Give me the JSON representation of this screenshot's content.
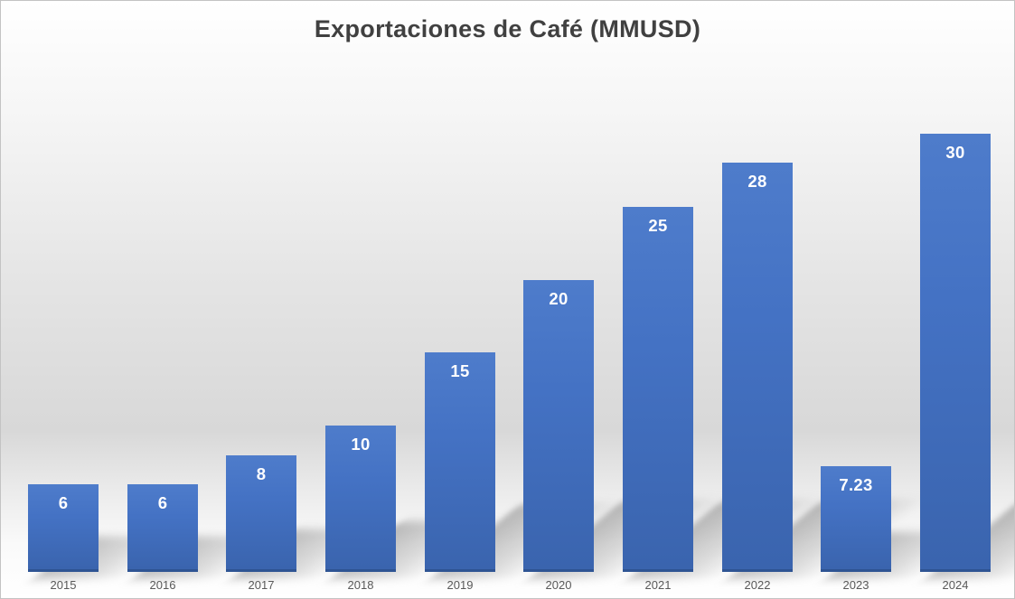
{
  "chart_data": {
    "type": "bar",
    "title": "Exportaciones de Café (MMUSD)",
    "categories": [
      "2015",
      "2016",
      "2017",
      "2018",
      "2019",
      "2020",
      "2021",
      "2022",
      "2023",
      "2024"
    ],
    "values": [
      6,
      6,
      8,
      10,
      15,
      20,
      25,
      28,
      7.23,
      30
    ],
    "labels": [
      "6",
      "6",
      "8",
      "10",
      "15",
      "20",
      "25",
      "28",
      "7.23",
      "30"
    ],
    "xlabel": "",
    "ylabel": "",
    "ylim": [
      0,
      36
    ],
    "grid": false,
    "legend": false,
    "y_axis_visible": false,
    "bar_color": "#4472C4",
    "bar_bottom_edge_color": "#2E5493",
    "value_label_color": "#FFFFFF",
    "axis_label_color": "#595959",
    "title_color": "#404040",
    "background_top_color": "#FFFFFF",
    "background_mid_color": "#D8D8D8",
    "background_bottom_color": "#FFFFFF",
    "shadow_style": "perspective-lower-right"
  }
}
